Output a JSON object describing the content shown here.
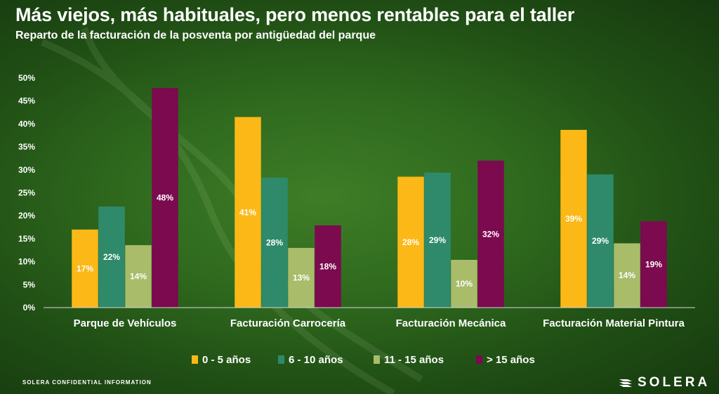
{
  "header": {
    "title": "Más viejos, más habituales, pero menos rentables para el taller",
    "subtitle": "Reparto de la facturación de la posventa por antigüedad del parque"
  },
  "footer": {
    "confidential": "SOLERA CONFIDENTIAL INFORMATION",
    "brand": "SOLERA"
  },
  "chart_data": {
    "type": "bar",
    "title": "Más viejos, más habituales, pero menos rentables para el taller",
    "subtitle": "Reparto de la facturación de la posventa por antigüedad del parque",
    "xlabel": "",
    "ylabel": "",
    "ylim": [
      0,
      50
    ],
    "ytick_step": 5,
    "ytick_format": "{v}%",
    "grid": false,
    "legend_position": "bottom",
    "categories": [
      "Parque de Vehículos",
      "Facturación Carrocería",
      "Facturación Mecánica",
      "Facturación Material Pintura"
    ],
    "series": [
      {
        "name": "0 - 5 años",
        "color": "#fbb817",
        "values": [
          17,
          41.5,
          28.5,
          38.7
        ],
        "labels": [
          "17%",
          "41%",
          "28%",
          "39%"
        ]
      },
      {
        "name": "6 - 10 años",
        "color": "#2e8a6b",
        "values": [
          22,
          28.3,
          29.4,
          29
        ],
        "labels": [
          "22%",
          "28%",
          "29%",
          "29%"
        ]
      },
      {
        "name": "11 - 15 años",
        "color": "#a8bc6a",
        "values": [
          13.6,
          13,
          10.4,
          14
        ],
        "labels": [
          "14%",
          "13%",
          "10%",
          "14%"
        ]
      },
      {
        "name": "> 15 años",
        "color": "#7b0a4f",
        "values": [
          47.8,
          17.9,
          32,
          18.8
        ],
        "labels": [
          "48%",
          "18%",
          "32%",
          "19%"
        ]
      }
    ]
  }
}
